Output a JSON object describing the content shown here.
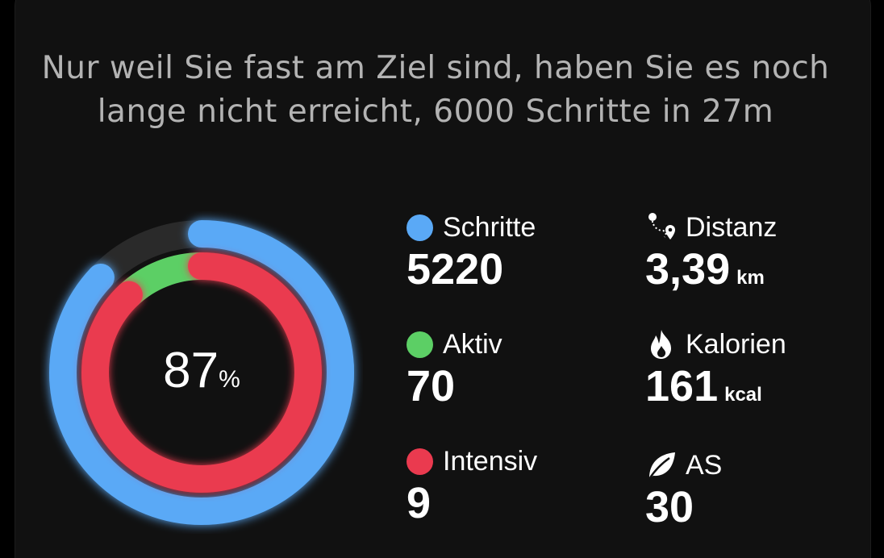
{
  "headline": "Nur weil Sie fast am Ziel sind, haben Sie es noch lange nicht erreicht, 6000 Schritte in 27m",
  "ring": {
    "percent": "87",
    "percent_unit": "%",
    "outer_progress": 0.87,
    "middle_progress": 0.12,
    "inner_progress": 0.88
  },
  "colors": {
    "steps": "#5aa9f6",
    "active": "#5ccf65",
    "intensive": "#ea3a4f",
    "card_bg": "#111111",
    "headline": "#b3b3b3"
  },
  "stats": {
    "steps": {
      "label": "Schritte",
      "value": "5220"
    },
    "active": {
      "label": "Aktiv",
      "value": "70"
    },
    "intensive": {
      "label": "Intensiv",
      "value": "9"
    },
    "distance": {
      "label": "Distanz",
      "value": "3,39",
      "unit": "km",
      "icon": "route-pin-icon"
    },
    "calories": {
      "label": "Kalorien",
      "value": "161",
      "unit": "kcal",
      "icon": "flame-icon"
    },
    "as": {
      "label": "AS",
      "value": "30",
      "icon": "leaf-icon"
    }
  }
}
